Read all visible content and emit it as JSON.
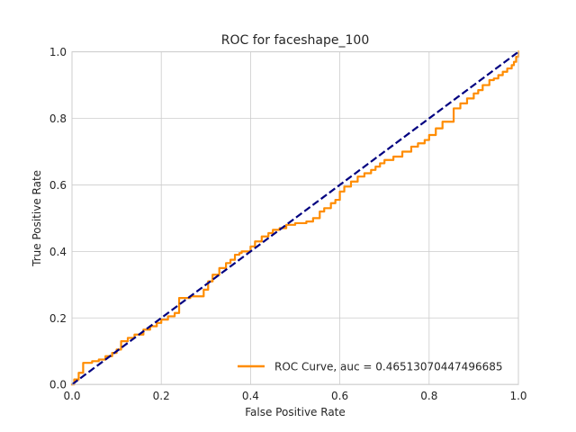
{
  "chart_data": {
    "type": "line",
    "title": "ROC for faceshape_100",
    "xlabel": "False Positive Rate",
    "ylabel": "True Positive Rate",
    "xlim": [
      0.0,
      1.0
    ],
    "ylim": [
      0.0,
      1.0
    ],
    "xticks": [
      "0.0",
      "0.2",
      "0.4",
      "0.6",
      "0.8",
      "1.0"
    ],
    "yticks": [
      "0.0",
      "0.2",
      "0.4",
      "0.6",
      "0.8",
      "1.0"
    ],
    "grid": true,
    "legend_position": "lower right",
    "series": [
      {
        "name": "ROC Curve, auc = 0.46513070447496685",
        "color": "#ff8c00",
        "style": "solid",
        "x": [
          0.0,
          0.005,
          0.005,
          0.015,
          0.015,
          0.025,
          0.025,
          0.045,
          0.045,
          0.06,
          0.06,
          0.075,
          0.075,
          0.09,
          0.09,
          0.1,
          0.1,
          0.11,
          0.11,
          0.125,
          0.125,
          0.14,
          0.14,
          0.16,
          0.16,
          0.175,
          0.175,
          0.19,
          0.19,
          0.2,
          0.2,
          0.215,
          0.215,
          0.23,
          0.23,
          0.24,
          0.24,
          0.265,
          0.265,
          0.295,
          0.295,
          0.305,
          0.305,
          0.315,
          0.315,
          0.33,
          0.33,
          0.345,
          0.345,
          0.355,
          0.355,
          0.365,
          0.365,
          0.375,
          0.375,
          0.38,
          0.38,
          0.4,
          0.4,
          0.41,
          0.41,
          0.425,
          0.425,
          0.44,
          0.44,
          0.45,
          0.45,
          0.465,
          0.465,
          0.48,
          0.48,
          0.5,
          0.5,
          0.525,
          0.525,
          0.54,
          0.54,
          0.555,
          0.555,
          0.565,
          0.565,
          0.58,
          0.58,
          0.59,
          0.59,
          0.6,
          0.6,
          0.61,
          0.61,
          0.625,
          0.625,
          0.64,
          0.64,
          0.655,
          0.655,
          0.67,
          0.67,
          0.68,
          0.68,
          0.69,
          0.69,
          0.7,
          0.7,
          0.72,
          0.72,
          0.74,
          0.74,
          0.76,
          0.76,
          0.775,
          0.775,
          0.79,
          0.79,
          0.8,
          0.8,
          0.815,
          0.815,
          0.83,
          0.83,
          0.855,
          0.855,
          0.87,
          0.87,
          0.885,
          0.885,
          0.9,
          0.9,
          0.91,
          0.91,
          0.92,
          0.92,
          0.935,
          0.935,
          0.945,
          0.945,
          0.955,
          0.955,
          0.965,
          0.965,
          0.975,
          0.975,
          0.985,
          0.985,
          0.99,
          0.99,
          0.995,
          0.995,
          1.0,
          1.0
        ],
        "y": [
          0.0,
          0.0,
          0.015,
          0.015,
          0.035,
          0.035,
          0.065,
          0.065,
          0.07,
          0.07,
          0.075,
          0.075,
          0.085,
          0.085,
          0.095,
          0.095,
          0.105,
          0.105,
          0.13,
          0.13,
          0.14,
          0.14,
          0.15,
          0.15,
          0.165,
          0.165,
          0.175,
          0.175,
          0.185,
          0.185,
          0.195,
          0.195,
          0.205,
          0.205,
          0.215,
          0.215,
          0.26,
          0.26,
          0.265,
          0.265,
          0.285,
          0.285,
          0.31,
          0.31,
          0.33,
          0.33,
          0.35,
          0.35,
          0.365,
          0.365,
          0.375,
          0.375,
          0.39,
          0.39,
          0.395,
          0.395,
          0.4,
          0.4,
          0.415,
          0.415,
          0.43,
          0.43,
          0.445,
          0.445,
          0.455,
          0.455,
          0.465,
          0.465,
          0.47,
          0.47,
          0.48,
          0.48,
          0.485,
          0.485,
          0.49,
          0.49,
          0.5,
          0.5,
          0.52,
          0.52,
          0.53,
          0.53,
          0.545,
          0.545,
          0.555,
          0.555,
          0.58,
          0.58,
          0.595,
          0.595,
          0.61,
          0.61,
          0.625,
          0.625,
          0.635,
          0.635,
          0.645,
          0.645,
          0.655,
          0.655,
          0.665,
          0.665,
          0.675,
          0.675,
          0.685,
          0.685,
          0.7,
          0.7,
          0.715,
          0.715,
          0.725,
          0.725,
          0.735,
          0.735,
          0.75,
          0.75,
          0.77,
          0.77,
          0.79,
          0.79,
          0.83,
          0.83,
          0.845,
          0.845,
          0.86,
          0.86,
          0.875,
          0.875,
          0.885,
          0.885,
          0.9,
          0.9,
          0.915,
          0.915,
          0.92,
          0.92,
          0.93,
          0.93,
          0.94,
          0.94,
          0.95,
          0.95,
          0.96,
          0.96,
          0.97,
          0.97,
          0.985,
          0.985,
          1.0
        ]
      },
      {
        "name": "",
        "color": "#000080",
        "style": "dashed",
        "x": [
          0.0,
          1.0
        ],
        "y": [
          0.0,
          1.0
        ]
      }
    ],
    "legend": [
      {
        "label": "ROC Curve, auc = 0.46513070447496685",
        "color": "#ff8c00"
      }
    ],
    "colors": {
      "grid": "#cccccc",
      "axes_edge": "#cccccc",
      "text": "#262626"
    }
  }
}
